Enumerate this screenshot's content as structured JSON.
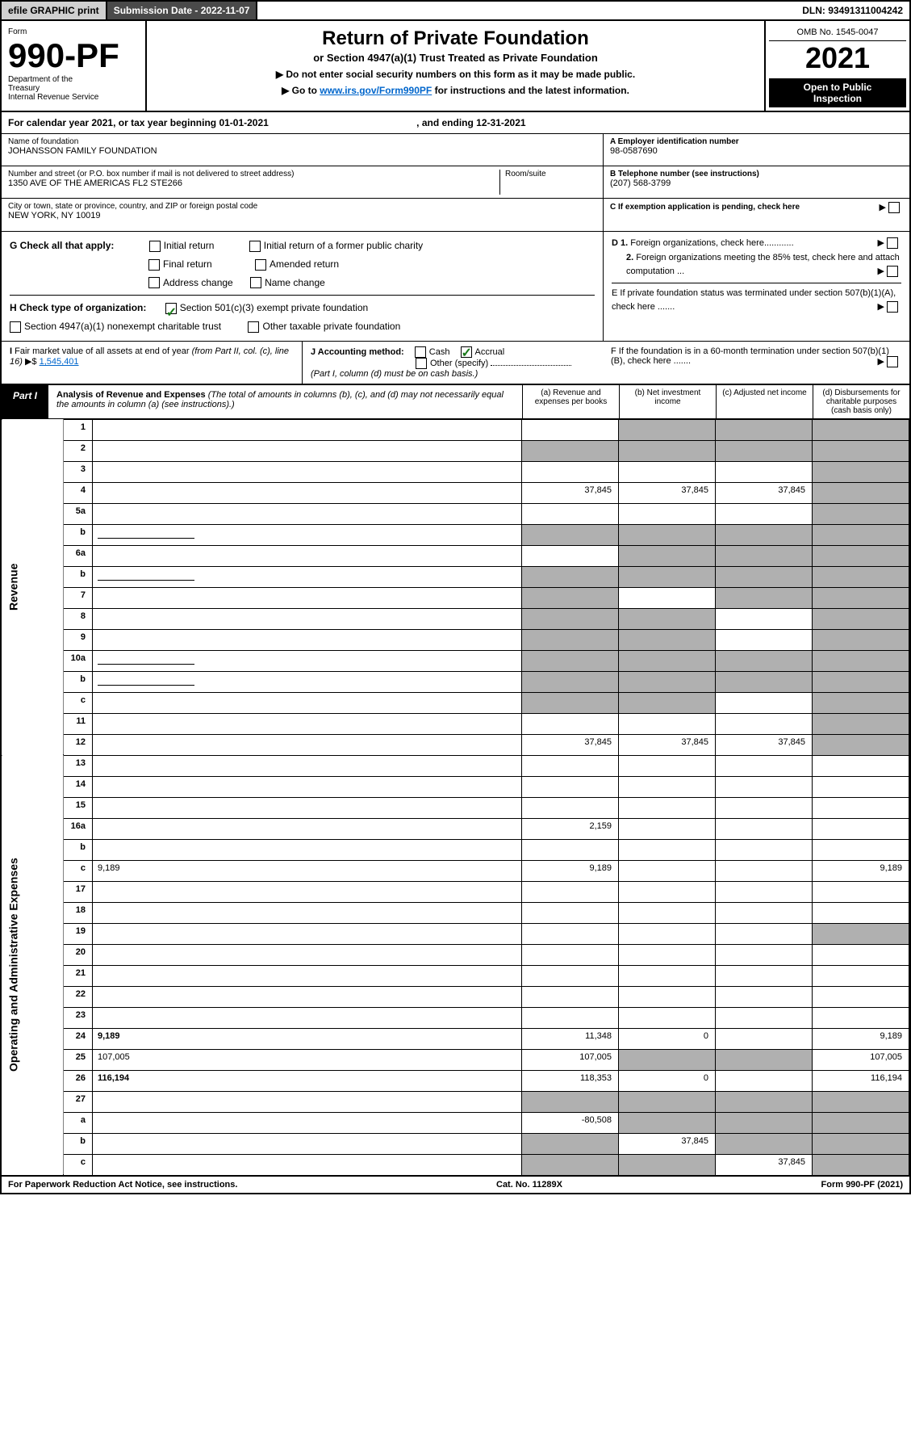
{
  "topbar": {
    "efile": "efile GRAPHIC print",
    "subdate_label": "Submission Date - 2022-11-07",
    "dln": "DLN: 93491311004242"
  },
  "header": {
    "form_word": "Form",
    "form_id": "990-PF",
    "dept1": "Department of the",
    "dept2": "Treasury",
    "dept3": "Internal Revenue Service",
    "title": "Return of Private Foundation",
    "subtitle": "or Section 4947(a)(1) Trust Treated as Private Foundation",
    "instr1": "▶ Do not enter social security numbers on this form as it may be made public.",
    "instr2_pre": "▶ Go to ",
    "instr2_link": "www.irs.gov/Form990PF",
    "instr2_post": " for instructions and the latest information.",
    "omb": "OMB No. 1545-0047",
    "year": "2021",
    "open": "Open to Public",
    "inspection": "Inspection"
  },
  "cal": {
    "text": "For calendar year 2021, or tax year beginning 01-01-2021",
    "ending": ", and ending 12-31-2021"
  },
  "info": {
    "name_label": "Name of foundation",
    "name": "JOHANSSON FAMILY FOUNDATION",
    "addr_label": "Number and street (or P.O. box number if mail is not delivered to street address)",
    "addr": "1350 AVE OF THE AMERICAS FL2 STE266",
    "room_label": "Room/suite",
    "city_label": "City or town, state or province, country, and ZIP or foreign postal code",
    "city": "NEW YORK, NY  10019",
    "a_label": "A Employer identification number",
    "a_val": "98-0587690",
    "b_label": "B Telephone number (see instructions)",
    "b_val": "(207) 568-3799",
    "c_label": "C If exemption application is pending, check here"
  },
  "checks": {
    "g_label": "G Check all that apply:",
    "g_opts": [
      "Initial return",
      "Initial return of a former public charity",
      "Final return",
      "Amended return",
      "Address change",
      "Name change"
    ],
    "h_label": "H Check type of organization:",
    "h_opt1": "Section 501(c)(3) exempt private foundation",
    "h_opt2": "Section 4947(a)(1) nonexempt charitable trust",
    "h_opt3": "Other taxable private foundation",
    "i_label": "I Fair market value of all assets at end of year (from Part II, col. (c), line 16)",
    "i_val": "1,545,401",
    "j_label": "J Accounting method:",
    "j_cash": "Cash",
    "j_accrual": "Accrual",
    "j_other": "Other (specify)",
    "j_note": "(Part I, column (d) must be on cash basis.)",
    "d1": "D 1. Foreign organizations, check here............",
    "d2": "2. Foreign organizations meeting the 85% test, check here and attach computation ...",
    "e": "E  If private foundation status was terminated under section 507(b)(1)(A), check here .......",
    "f": "F  If the foundation is in a 60-month termination under section 507(b)(1)(B), check here ......."
  },
  "part1": {
    "label": "Part I",
    "title": "Analysis of Revenue and Expenses",
    "note": " (The total of amounts in columns (b), (c), and (d) may not necessarily equal the amounts in column (a) (see instructions).)",
    "col_a": "(a)   Revenue and expenses per books",
    "col_b": "(b)   Net investment income",
    "col_c": "(c)   Adjusted net income",
    "col_d": "(d)  Disbursements for charitable purposes (cash basis only)"
  },
  "side_rev": "Revenue",
  "side_exp": "Operating and Administrative Expenses",
  "rows": [
    {
      "n": "1",
      "d": "",
      "a": "",
      "b": "",
      "c": "",
      "sb": 1,
      "sc": 1,
      "sd": 1
    },
    {
      "n": "2",
      "d": "",
      "a": "",
      "b": "",
      "c": "",
      "sa": 1,
      "sb": 1,
      "sc": 1,
      "sd": 1
    },
    {
      "n": "3",
      "d": "",
      "a": "",
      "b": "",
      "c": "",
      "sd": 1
    },
    {
      "n": "4",
      "d": "",
      "a": "37,845",
      "b": "37,845",
      "c": "37,845",
      "sd": 1
    },
    {
      "n": "5a",
      "d": "",
      "a": "",
      "b": "",
      "c": "",
      "sd": 1
    },
    {
      "n": "b",
      "d": "",
      "a": "",
      "b": "",
      "c": "",
      "sa": 1,
      "sb": 1,
      "sc": 1,
      "sd": 1,
      "inline": 1
    },
    {
      "n": "6a",
      "d": "",
      "a": "",
      "b": "",
      "c": "",
      "sb": 1,
      "sc": 1,
      "sd": 1
    },
    {
      "n": "b",
      "d": "",
      "a": "",
      "b": "",
      "c": "",
      "sa": 1,
      "sb": 1,
      "sc": 1,
      "sd": 1,
      "inline": 1
    },
    {
      "n": "7",
      "d": "",
      "a": "",
      "b": "",
      "c": "",
      "sa": 1,
      "sc": 1,
      "sd": 1
    },
    {
      "n": "8",
      "d": "",
      "a": "",
      "b": "",
      "c": "",
      "sa": 1,
      "sb": 1,
      "sd": 1
    },
    {
      "n": "9",
      "d": "",
      "a": "",
      "b": "",
      "c": "",
      "sa": 1,
      "sb": 1,
      "sd": 1
    },
    {
      "n": "10a",
      "d": "",
      "a": "",
      "b": "",
      "c": "",
      "sa": 1,
      "sb": 1,
      "sc": 1,
      "sd": 1,
      "inline": 1
    },
    {
      "n": "b",
      "d": "",
      "a": "",
      "b": "",
      "c": "",
      "sa": 1,
      "sb": 1,
      "sc": 1,
      "sd": 1,
      "inline": 1
    },
    {
      "n": "c",
      "d": "",
      "a": "",
      "b": "",
      "c": "",
      "sa": 1,
      "sb": 1,
      "sd": 1
    },
    {
      "n": "11",
      "d": "",
      "a": "",
      "b": "",
      "c": "",
      "sd": 1
    },
    {
      "n": "12",
      "d": "",
      "a": "37,845",
      "b": "37,845",
      "c": "37,845",
      "sd": 1,
      "bold": 1
    },
    {
      "n": "13",
      "d": "",
      "a": "",
      "b": "",
      "c": ""
    },
    {
      "n": "14",
      "d": "",
      "a": "",
      "b": "",
      "c": ""
    },
    {
      "n": "15",
      "d": "",
      "a": "",
      "b": "",
      "c": ""
    },
    {
      "n": "16a",
      "d": "",
      "a": "2,159",
      "b": "",
      "c": ""
    },
    {
      "n": "b",
      "d": "",
      "a": "",
      "b": "",
      "c": ""
    },
    {
      "n": "c",
      "d": "9,189",
      "a": "9,189",
      "b": "",
      "c": ""
    },
    {
      "n": "17",
      "d": "",
      "a": "",
      "b": "",
      "c": ""
    },
    {
      "n": "18",
      "d": "",
      "a": "",
      "b": "",
      "c": ""
    },
    {
      "n": "19",
      "d": "",
      "a": "",
      "b": "",
      "c": "",
      "sd": 1
    },
    {
      "n": "20",
      "d": "",
      "a": "",
      "b": "",
      "c": ""
    },
    {
      "n": "21",
      "d": "",
      "a": "",
      "b": "",
      "c": ""
    },
    {
      "n": "22",
      "d": "",
      "a": "",
      "b": "",
      "c": ""
    },
    {
      "n": "23",
      "d": "",
      "a": "",
      "b": "",
      "c": ""
    },
    {
      "n": "24",
      "d": "9,189",
      "a": "11,348",
      "b": "0",
      "c": "",
      "bold": 1
    },
    {
      "n": "25",
      "d": "107,005",
      "a": "107,005",
      "b": "",
      "c": "",
      "sb": 1,
      "sc": 1
    },
    {
      "n": "26",
      "d": "116,194",
      "a": "118,353",
      "b": "0",
      "c": "",
      "bold": 1
    },
    {
      "n": "27",
      "d": "",
      "a": "",
      "b": "",
      "c": "",
      "sa": 1,
      "sb": 1,
      "sc": 1,
      "sd": 1
    },
    {
      "n": "a",
      "d": "",
      "a": "-80,508",
      "b": "",
      "c": "",
      "sb": 1,
      "sc": 1,
      "sd": 1,
      "bold": 1
    },
    {
      "n": "b",
      "d": "",
      "a": "",
      "b": "37,845",
      "c": "",
      "sa": 1,
      "sc": 1,
      "sd": 1,
      "bold": 1
    },
    {
      "n": "c",
      "d": "",
      "a": "",
      "b": "",
      "c": "37,845",
      "sa": 1,
      "sb": 1,
      "sd": 1,
      "bold": 1
    }
  ],
  "footer": {
    "left": "For Paperwork Reduction Act Notice, see instructions.",
    "center": "Cat. No. 11289X",
    "right": "Form 990-PF (2021)"
  }
}
